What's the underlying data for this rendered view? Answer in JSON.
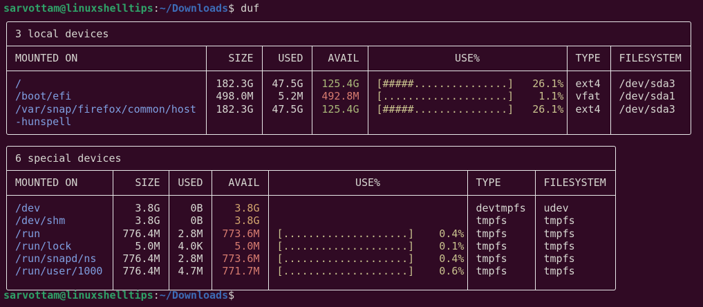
{
  "prompt": {
    "user_host": "sarvottam@linuxshelltips",
    "sep": ":",
    "path": "~/Downloads",
    "symbol": "$",
    "command": " duf"
  },
  "colors": {
    "background": "#300a24",
    "mount": "#7f9ee0",
    "avail_ok": "#a9b879",
    "avail_warn": "#d3a56e",
    "avail_low": "#d77c70",
    "bar": "#c9c28e"
  },
  "local": {
    "title": "3 local devices",
    "headers": [
      "MOUNTED ON",
      "SIZE",
      "USED",
      "AVAIL",
      "USE%",
      "TYPE",
      "FILESYSTEM"
    ],
    "rows": [
      {
        "mount": "/",
        "size": "182.3G",
        "used": "47.5G",
        "avail": "125.4G",
        "avail_status": "ok",
        "bar": "[#####...............]",
        "pct": "26.1%",
        "type": "ext4",
        "fs": "/dev/sda3"
      },
      {
        "mount": "/boot/efi",
        "size": "498.0M",
        "used": "5.2M",
        "avail": "492.8M",
        "avail_status": "low",
        "bar": "[....................]",
        "pct": "1.1%",
        "type": "vfat",
        "fs": "/dev/sda1"
      },
      {
        "mount": "/var/snap/firefox/common/host-hunspell",
        "size": "182.3G",
        "used": "47.5G",
        "avail": "125.4G",
        "avail_status": "ok",
        "bar": "[#####...............]",
        "pct": "26.1%",
        "type": "ext4",
        "fs": "/dev/sda3"
      }
    ]
  },
  "special": {
    "title": "6 special devices",
    "headers": [
      "MOUNTED ON",
      "SIZE",
      "USED",
      "AVAIL",
      "USE%",
      "TYPE",
      "FILESYSTEM"
    ],
    "rows": [
      {
        "mount": "/dev",
        "size": "3.8G",
        "used": "0B",
        "avail": "3.8G",
        "avail_status": "warn",
        "bar": "",
        "pct": "",
        "type": "devtmpfs",
        "fs": "udev"
      },
      {
        "mount": "/dev/shm",
        "size": "3.8G",
        "used": "0B",
        "avail": "3.8G",
        "avail_status": "warn",
        "bar": "",
        "pct": "",
        "type": "tmpfs",
        "fs": "tmpfs"
      },
      {
        "mount": "/run",
        "size": "776.4M",
        "used": "2.8M",
        "avail": "773.6M",
        "avail_status": "low",
        "bar": "[....................]",
        "pct": "0.4%",
        "type": "tmpfs",
        "fs": "tmpfs"
      },
      {
        "mount": "/run/lock",
        "size": "5.0M",
        "used": "4.0K",
        "avail": "5.0M",
        "avail_status": "low",
        "bar": "[....................]",
        "pct": "0.1%",
        "type": "tmpfs",
        "fs": "tmpfs"
      },
      {
        "mount": "/run/snapd/ns",
        "size": "776.4M",
        "used": "2.8M",
        "avail": "773.6M",
        "avail_status": "low",
        "bar": "[....................]",
        "pct": "0.4%",
        "type": "tmpfs",
        "fs": "tmpfs"
      },
      {
        "mount": "/run/user/1000",
        "size": "776.4M",
        "used": "4.7M",
        "avail": "771.7M",
        "avail_status": "low",
        "bar": "[....................]",
        "pct": "0.6%",
        "type": "tmpfs",
        "fs": "tmpfs"
      }
    ]
  }
}
